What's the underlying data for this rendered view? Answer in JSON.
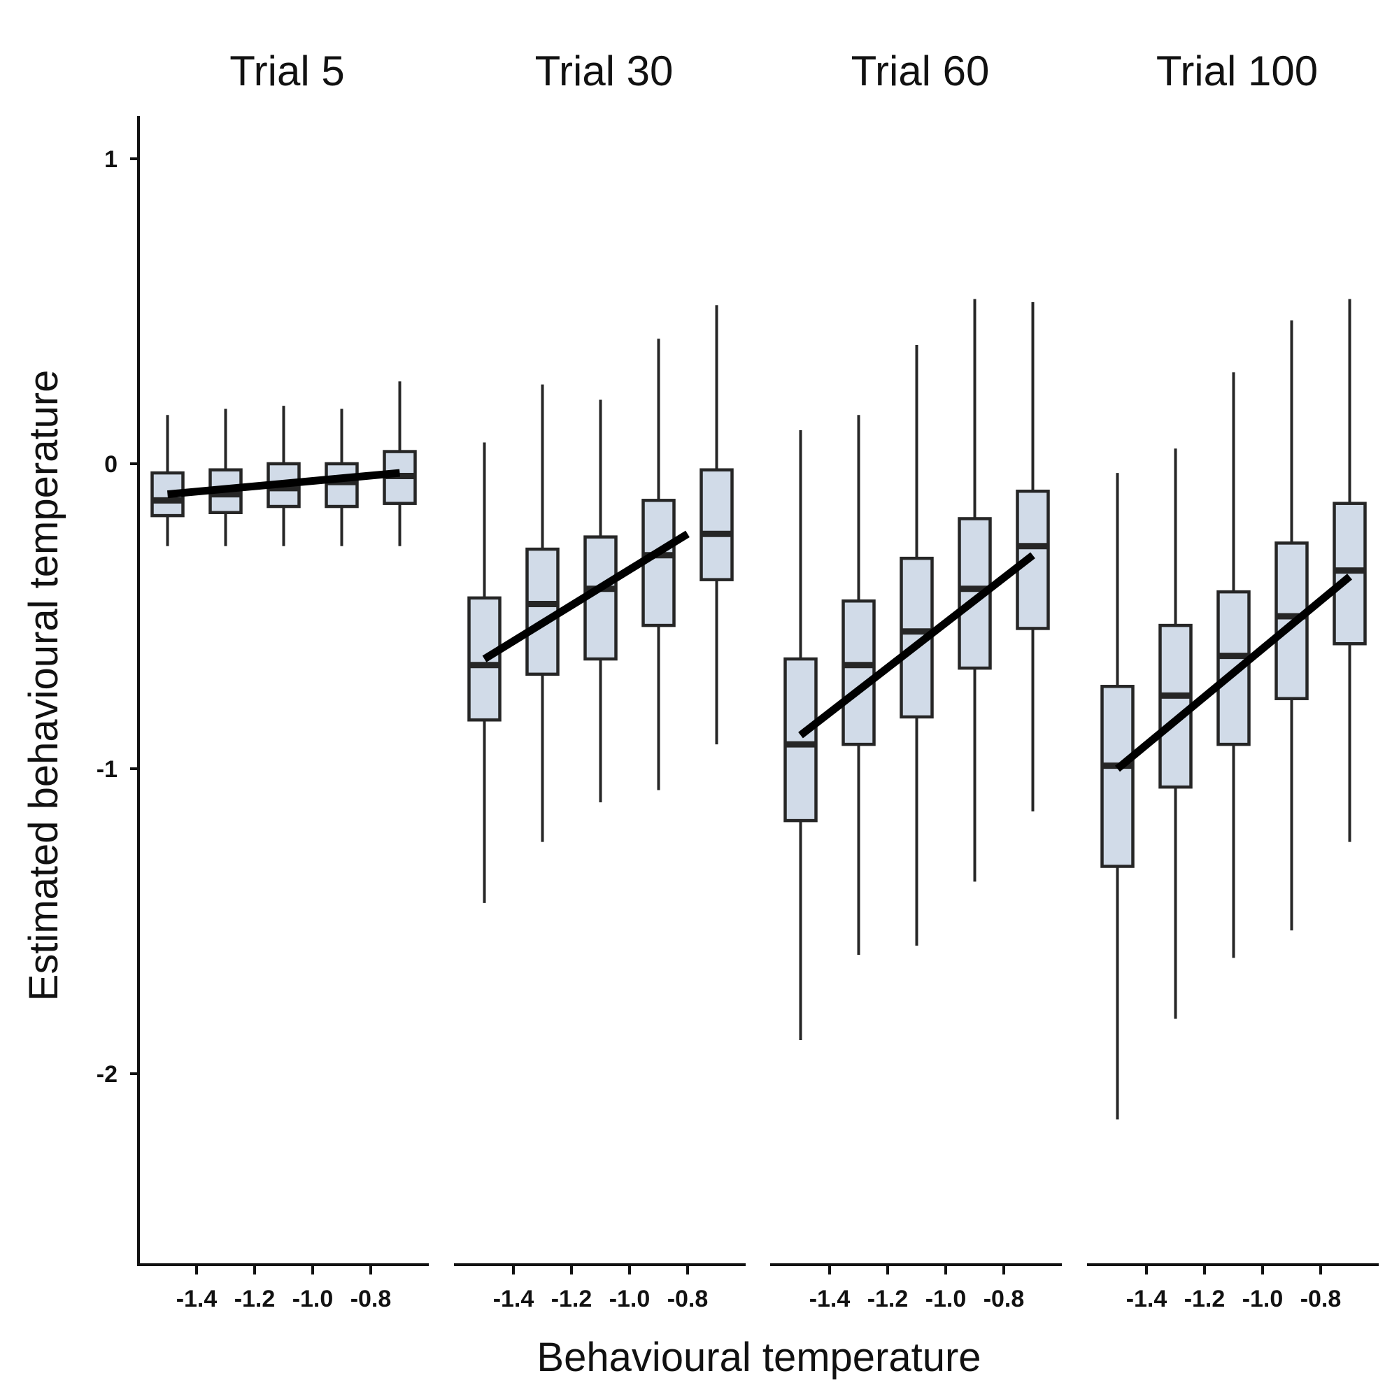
{
  "chart_data": {
    "type": "boxplot",
    "xlabel": "Behavioural temperature",
    "ylabel": "Estimated behavioural temperature",
    "x_ticks": [
      "-1.4",
      "-1.2",
      "-1.0",
      "-0.8"
    ],
    "x_tick_values": [
      -1.4,
      -1.2,
      -1.0,
      -0.8
    ],
    "y_ticks": [
      "1",
      "0",
      "-1",
      "-2"
    ],
    "y_tick_values": [
      1,
      0,
      -1,
      -2
    ],
    "ylim": [
      -2.62,
      1.14
    ],
    "xlim": [
      -1.6,
      -0.6
    ],
    "box_x": [
      -1.5,
      -1.3,
      -1.1,
      -0.9,
      -0.7
    ],
    "panels": [
      {
        "title": "Trial 5",
        "boxes": [
          {
            "x": -1.5,
            "min": -0.27,
            "q1": -0.17,
            "median": -0.12,
            "q3": -0.03,
            "max": 0.16
          },
          {
            "x": -1.3,
            "min": -0.27,
            "q1": -0.16,
            "median": -0.1,
            "q3": -0.02,
            "max": 0.18
          },
          {
            "x": -1.1,
            "min": -0.27,
            "q1": -0.14,
            "median": -0.08,
            "q3": 0.0,
            "max": 0.19
          },
          {
            "x": -0.9,
            "min": -0.27,
            "q1": -0.14,
            "median": -0.06,
            "q3": 0.0,
            "max": 0.18
          },
          {
            "x": -0.7,
            "min": -0.27,
            "q1": -0.13,
            "median": -0.04,
            "q3": 0.04,
            "max": 0.27
          }
        ],
        "trend": {
          "x": [
            -1.5,
            -0.7
          ],
          "y": [
            -0.1,
            -0.03
          ]
        }
      },
      {
        "title": "Trial 30",
        "boxes": [
          {
            "x": -1.5,
            "min": -1.44,
            "q1": -0.84,
            "median": -0.66,
            "q3": -0.44,
            "max": 0.07
          },
          {
            "x": -1.3,
            "min": -1.24,
            "q1": -0.69,
            "median": -0.46,
            "q3": -0.28,
            "max": 0.26
          },
          {
            "x": -1.1,
            "min": -1.11,
            "q1": -0.64,
            "median": -0.41,
            "q3": -0.24,
            "max": 0.21
          },
          {
            "x": -0.9,
            "min": -1.07,
            "q1": -0.53,
            "median": -0.3,
            "q3": -0.12,
            "max": 0.41
          },
          {
            "x": -0.7,
            "min": -0.92,
            "q1": -0.38,
            "median": -0.23,
            "q3": -0.02,
            "max": 0.52
          }
        ],
        "trend": {
          "x": [
            -1.5,
            -0.8
          ],
          "y": [
            -0.64,
            -0.23
          ]
        }
      },
      {
        "title": "Trial 60",
        "boxes": [
          {
            "x": -1.5,
            "min": -1.89,
            "q1": -1.17,
            "median": -0.92,
            "q3": -0.64,
            "max": 0.11
          },
          {
            "x": -1.3,
            "min": -1.61,
            "q1": -0.92,
            "median": -0.66,
            "q3": -0.45,
            "max": 0.16
          },
          {
            "x": -1.1,
            "min": -1.58,
            "q1": -0.83,
            "median": -0.55,
            "q3": -0.31,
            "max": 0.39
          },
          {
            "x": -0.9,
            "min": -1.37,
            "q1": -0.67,
            "median": -0.41,
            "q3": -0.18,
            "max": 0.54
          },
          {
            "x": -0.7,
            "min": -1.14,
            "q1": -0.54,
            "median": -0.27,
            "q3": -0.09,
            "max": 0.53
          }
        ],
        "trend": {
          "x": [
            -1.5,
            -0.7
          ],
          "y": [
            -0.89,
            -0.3
          ]
        }
      },
      {
        "title": "Trial 100",
        "boxes": [
          {
            "x": -1.5,
            "min": -2.15,
            "q1": -1.32,
            "median": -0.99,
            "q3": -0.73,
            "max": -0.03
          },
          {
            "x": -1.3,
            "min": -1.82,
            "q1": -1.06,
            "median": -0.76,
            "q3": -0.53,
            "max": 0.05
          },
          {
            "x": -1.1,
            "min": -1.62,
            "q1": -0.92,
            "median": -0.63,
            "q3": -0.42,
            "max": 0.3
          },
          {
            "x": -0.9,
            "min": -1.53,
            "q1": -0.77,
            "median": -0.5,
            "q3": -0.26,
            "max": 0.47
          },
          {
            "x": -0.7,
            "min": -1.24,
            "q1": -0.59,
            "median": -0.35,
            "q3": -0.13,
            "max": 0.54
          }
        ],
        "trend": {
          "x": [
            -1.5,
            -0.7
          ],
          "y": [
            -1.0,
            -0.37
          ]
        }
      }
    ]
  }
}
